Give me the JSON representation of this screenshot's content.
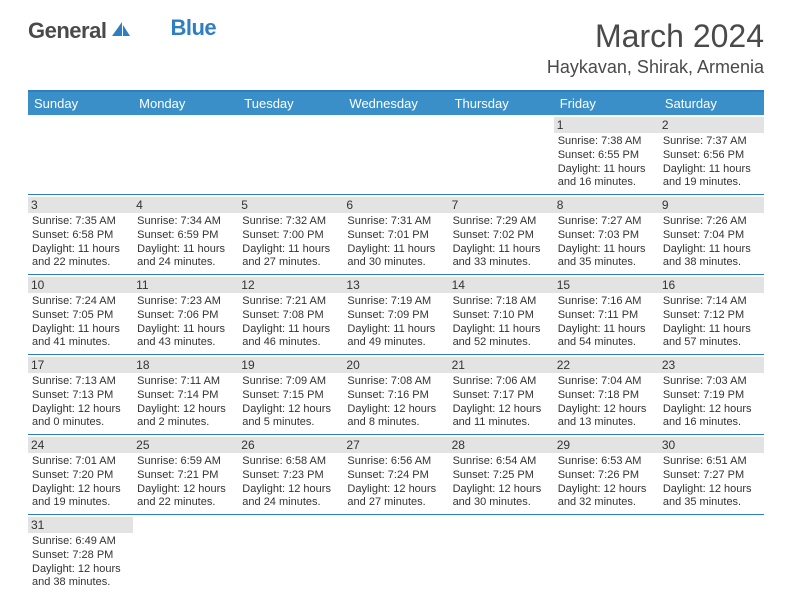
{
  "logo": {
    "text1": "General",
    "text2": "Blue"
  },
  "colors": {
    "accent": "#2d7fc1",
    "header_bg": "#3a8fc9",
    "daynum_bg": "#e3e3e3",
    "text": "#333333",
    "title_text": "#4a4a4a"
  },
  "title": "March 2024",
  "location": "Haykavan, Shirak, Armenia",
  "dow": [
    "Sunday",
    "Monday",
    "Tuesday",
    "Wednesday",
    "Thursday",
    "Friday",
    "Saturday"
  ],
  "weeks": [
    [
      null,
      null,
      null,
      null,
      null,
      {
        "day": "1",
        "sunrise": "Sunrise: 7:38 AM",
        "sunset": "Sunset: 6:55 PM",
        "day1": "Daylight: 11 hours",
        "day2": "and 16 minutes."
      },
      {
        "day": "2",
        "sunrise": "Sunrise: 7:37 AM",
        "sunset": "Sunset: 6:56 PM",
        "day1": "Daylight: 11 hours",
        "day2": "and 19 minutes."
      }
    ],
    [
      {
        "day": "3",
        "sunrise": "Sunrise: 7:35 AM",
        "sunset": "Sunset: 6:58 PM",
        "day1": "Daylight: 11 hours",
        "day2": "and 22 minutes."
      },
      {
        "day": "4",
        "sunrise": "Sunrise: 7:34 AM",
        "sunset": "Sunset: 6:59 PM",
        "day1": "Daylight: 11 hours",
        "day2": "and 24 minutes."
      },
      {
        "day": "5",
        "sunrise": "Sunrise: 7:32 AM",
        "sunset": "Sunset: 7:00 PM",
        "day1": "Daylight: 11 hours",
        "day2": "and 27 minutes."
      },
      {
        "day": "6",
        "sunrise": "Sunrise: 7:31 AM",
        "sunset": "Sunset: 7:01 PM",
        "day1": "Daylight: 11 hours",
        "day2": "and 30 minutes."
      },
      {
        "day": "7",
        "sunrise": "Sunrise: 7:29 AM",
        "sunset": "Sunset: 7:02 PM",
        "day1": "Daylight: 11 hours",
        "day2": "and 33 minutes."
      },
      {
        "day": "8",
        "sunrise": "Sunrise: 7:27 AM",
        "sunset": "Sunset: 7:03 PM",
        "day1": "Daylight: 11 hours",
        "day2": "and 35 minutes."
      },
      {
        "day": "9",
        "sunrise": "Sunrise: 7:26 AM",
        "sunset": "Sunset: 7:04 PM",
        "day1": "Daylight: 11 hours",
        "day2": "and 38 minutes."
      }
    ],
    [
      {
        "day": "10",
        "sunrise": "Sunrise: 7:24 AM",
        "sunset": "Sunset: 7:05 PM",
        "day1": "Daylight: 11 hours",
        "day2": "and 41 minutes."
      },
      {
        "day": "11",
        "sunrise": "Sunrise: 7:23 AM",
        "sunset": "Sunset: 7:06 PM",
        "day1": "Daylight: 11 hours",
        "day2": "and 43 minutes."
      },
      {
        "day": "12",
        "sunrise": "Sunrise: 7:21 AM",
        "sunset": "Sunset: 7:08 PM",
        "day1": "Daylight: 11 hours",
        "day2": "and 46 minutes."
      },
      {
        "day": "13",
        "sunrise": "Sunrise: 7:19 AM",
        "sunset": "Sunset: 7:09 PM",
        "day1": "Daylight: 11 hours",
        "day2": "and 49 minutes."
      },
      {
        "day": "14",
        "sunrise": "Sunrise: 7:18 AM",
        "sunset": "Sunset: 7:10 PM",
        "day1": "Daylight: 11 hours",
        "day2": "and 52 minutes."
      },
      {
        "day": "15",
        "sunrise": "Sunrise: 7:16 AM",
        "sunset": "Sunset: 7:11 PM",
        "day1": "Daylight: 11 hours",
        "day2": "and 54 minutes."
      },
      {
        "day": "16",
        "sunrise": "Sunrise: 7:14 AM",
        "sunset": "Sunset: 7:12 PM",
        "day1": "Daylight: 11 hours",
        "day2": "and 57 minutes."
      }
    ],
    [
      {
        "day": "17",
        "sunrise": "Sunrise: 7:13 AM",
        "sunset": "Sunset: 7:13 PM",
        "day1": "Daylight: 12 hours",
        "day2": "and 0 minutes."
      },
      {
        "day": "18",
        "sunrise": "Sunrise: 7:11 AM",
        "sunset": "Sunset: 7:14 PM",
        "day1": "Daylight: 12 hours",
        "day2": "and 2 minutes."
      },
      {
        "day": "19",
        "sunrise": "Sunrise: 7:09 AM",
        "sunset": "Sunset: 7:15 PM",
        "day1": "Daylight: 12 hours",
        "day2": "and 5 minutes."
      },
      {
        "day": "20",
        "sunrise": "Sunrise: 7:08 AM",
        "sunset": "Sunset: 7:16 PM",
        "day1": "Daylight: 12 hours",
        "day2": "and 8 minutes."
      },
      {
        "day": "21",
        "sunrise": "Sunrise: 7:06 AM",
        "sunset": "Sunset: 7:17 PM",
        "day1": "Daylight: 12 hours",
        "day2": "and 11 minutes."
      },
      {
        "day": "22",
        "sunrise": "Sunrise: 7:04 AM",
        "sunset": "Sunset: 7:18 PM",
        "day1": "Daylight: 12 hours",
        "day2": "and 13 minutes."
      },
      {
        "day": "23",
        "sunrise": "Sunrise: 7:03 AM",
        "sunset": "Sunset: 7:19 PM",
        "day1": "Daylight: 12 hours",
        "day2": "and 16 minutes."
      }
    ],
    [
      {
        "day": "24",
        "sunrise": "Sunrise: 7:01 AM",
        "sunset": "Sunset: 7:20 PM",
        "day1": "Daylight: 12 hours",
        "day2": "and 19 minutes."
      },
      {
        "day": "25",
        "sunrise": "Sunrise: 6:59 AM",
        "sunset": "Sunset: 7:21 PM",
        "day1": "Daylight: 12 hours",
        "day2": "and 22 minutes."
      },
      {
        "day": "26",
        "sunrise": "Sunrise: 6:58 AM",
        "sunset": "Sunset: 7:23 PM",
        "day1": "Daylight: 12 hours",
        "day2": "and 24 minutes."
      },
      {
        "day": "27",
        "sunrise": "Sunrise: 6:56 AM",
        "sunset": "Sunset: 7:24 PM",
        "day1": "Daylight: 12 hours",
        "day2": "and 27 minutes."
      },
      {
        "day": "28",
        "sunrise": "Sunrise: 6:54 AM",
        "sunset": "Sunset: 7:25 PM",
        "day1": "Daylight: 12 hours",
        "day2": "and 30 minutes."
      },
      {
        "day": "29",
        "sunrise": "Sunrise: 6:53 AM",
        "sunset": "Sunset: 7:26 PM",
        "day1": "Daylight: 12 hours",
        "day2": "and 32 minutes."
      },
      {
        "day": "30",
        "sunrise": "Sunrise: 6:51 AM",
        "sunset": "Sunset: 7:27 PM",
        "day1": "Daylight: 12 hours",
        "day2": "and 35 minutes."
      }
    ],
    [
      {
        "day": "31",
        "sunrise": "Sunrise: 6:49 AM",
        "sunset": "Sunset: 7:28 PM",
        "day1": "Daylight: 12 hours",
        "day2": "and 38 minutes."
      },
      null,
      null,
      null,
      null,
      null,
      null
    ]
  ]
}
